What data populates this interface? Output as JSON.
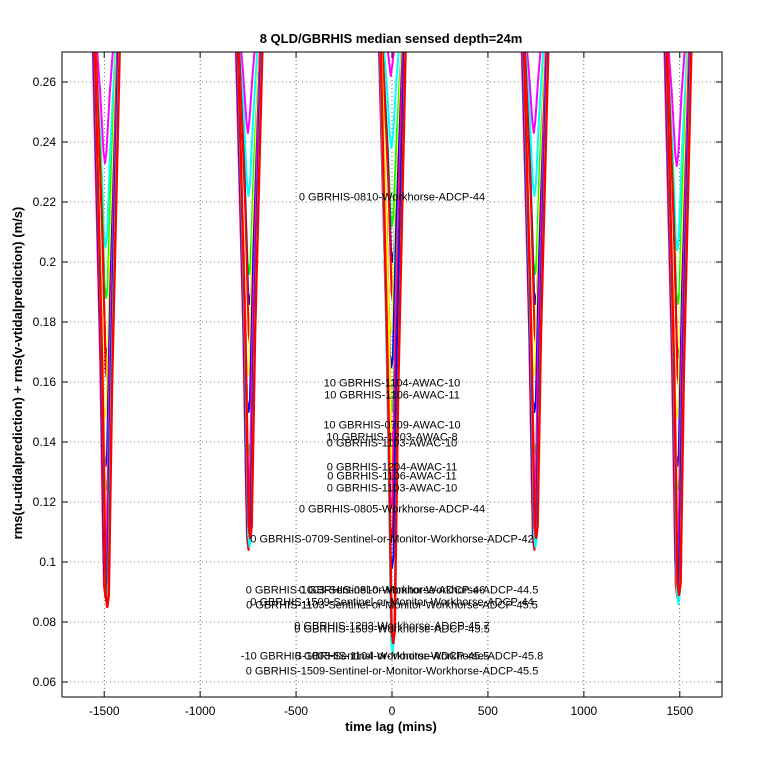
{
  "chart_data": {
    "type": "line",
    "title": "8 QLD/GBRHIS median sensed depth=24m",
    "xlabel": "time lag (mins)",
    "ylabel": "rms(u-utidalprediction) + rms(v-vtidalprediction) (m/s)",
    "xlim": [
      -1720,
      1720
    ],
    "ylim": [
      0.055,
      0.27
    ],
    "grid": true,
    "xticks": [
      -1500,
      -1000,
      -500,
      0,
      500,
      1000,
      1500
    ],
    "yticks": [
      0.06,
      0.08,
      0.1,
      0.12,
      0.14,
      0.16,
      0.18,
      0.2,
      0.22,
      0.24,
      0.26
    ],
    "ytick_labels": [
      "0.06",
      "0.08",
      "0.1",
      "0.12",
      "0.14",
      "0.16",
      "0.18",
      "0.2",
      "0.22",
      "0.24",
      "0.26"
    ],
    "dip_centers": [
      -1490,
      -745,
      0,
      745,
      1490
    ],
    "series": [
      {
        "color": "#ff00ff",
        "minima": [
          0.233,
          0.243,
          0.262,
          0.243,
          0.232
        ]
      },
      {
        "color": "#00ffff",
        "minima": [
          0.205,
          0.222,
          0.238,
          0.222,
          0.204
        ]
      },
      {
        "color": "#00ff00",
        "minima": [
          0.188,
          0.196,
          0.212,
          0.196,
          0.186
        ]
      },
      {
        "color": "#0000ff",
        "minima": [
          0.168,
          0.186,
          0.2,
          0.186,
          0.168
        ]
      },
      {
        "color": "#ff0000",
        "minima": [
          0.16,
          0.172,
          0.186,
          0.172,
          0.158
        ]
      },
      {
        "color": "#ffff00",
        "minima": [
          0.148,
          0.162,
          0.176,
          0.162,
          0.148
        ]
      },
      {
        "color": "#0000ff",
        "minima": [
          0.132,
          0.15,
          0.165,
          0.15,
          0.132
        ]
      },
      {
        "color": "#00ff00",
        "minima": [
          0.124,
          0.136,
          0.15,
          0.136,
          0.124
        ]
      },
      {
        "color": "#ff00ff",
        "minima": [
          0.115,
          0.124,
          0.14,
          0.124,
          0.115
        ]
      },
      {
        "color": "#ffff00",
        "minima": [
          0.104,
          0.116,
          0.128,
          0.116,
          0.104
        ]
      },
      {
        "color": "#ff00ff",
        "minima": [
          0.096,
          0.114,
          0.118,
          0.114,
          0.096
        ]
      },
      {
        "color": "#ff0000",
        "minima": [
          0.088,
          0.104,
          0.108,
          0.104,
          0.088
        ]
      },
      {
        "color": "#0000ff",
        "minima": [
          0.092,
          0.106,
          0.098,
          0.106,
          0.092
        ]
      },
      {
        "color": "#00ffff",
        "minima": [
          0.089,
          0.105,
          0.07,
          0.105,
          0.086
        ]
      },
      {
        "color": "#ff0000",
        "minima": [
          0.085,
          0.108,
          0.073,
          0.108,
          0.089
        ]
      }
    ],
    "annotations": [
      {
        "text": "0 GBRHIS-0810-Workhorse-ADCP-44",
        "x": 0,
        "y": 0.2205
      },
      {
        "text": "10 GBRHIS-1104-AWAC-10",
        "x": 0,
        "y": 0.1585
      },
      {
        "text": "10 GBRHIS-1106-AWAC-11",
        "x": 0,
        "y": 0.1545
      },
      {
        "text": "10 GBRHIS-0709-AWAC-10",
        "x": 0,
        "y": 0.1445
      },
      {
        "text": "10 GBRHIS-1203-AWAC-8",
        "x": 0,
        "y": 0.1405
      },
      {
        "text": "0 GBRHIS-1103-AWAC-10",
        "x": 0,
        "y": 0.1385
      },
      {
        "text": "0 GBRHIS-1204-AWAC-11",
        "x": 0,
        "y": 0.1305
      },
      {
        "text": "0 GBRHIS-1106-AWAC-11",
        "x": 0,
        "y": 0.1275
      },
      {
        "text": "0 GBRHIS-1103-AWAC-10",
        "x": 0,
        "y": 0.1235
      },
      {
        "text": "0 GBRHIS-0805-Workhorse-ADCP-44",
        "x": 0,
        "y": 0.1165
      },
      {
        "text": "0 GBRHIS-0709-Sentinel-or-Monitor-Workhorse-ADCP-42",
        "x": 0,
        "y": 0.1065
      },
      {
        "text": "0 GBRHIS-1003-Sentinel-or-Monitor-Workhorse-ADCP-44.5",
        "x": 0,
        "y": 0.0895
      },
      {
        "text": "0 GBRHIS-0810-Workhorse-ADCP-46",
        "x": 0,
        "y": 0.0895
      },
      {
        "text": "0 GBRHIS-1509-Sentinel-or-Monitor-Workhorse-ADCP-44",
        "x": 0,
        "y": 0.0855
      },
      {
        "text": "0 GBRHIS-1103-Sentinel-or-Monitor-Workhorse-ADCP-45.5",
        "x": 0,
        "y": 0.0845
      },
      {
        "text": "0 GBRHIS-1203-Workhorse-ADCP-45.7",
        "x": 0,
        "y": 0.0775
      },
      {
        "text": "0 GBRHIS-1509-Workhorse-ADCP-45.5",
        "x": 0,
        "y": 0.0765
      },
      {
        "text": "-10 GBRHIS-1003-Sentinel-or-Monitor-Workhorse-ADCP-45.8",
        "x": 0,
        "y": 0.0675
      },
      {
        "text": "0 GBRHIS-1104-Workhorse-ADCP-45.5",
        "x": 0,
        "y": 0.0675
      },
      {
        "text": "0 GBRHIS-1509-Sentinel-or-Monitor-Workhorse-ADCP-45.5",
        "x": 0,
        "y": 0.0625
      }
    ]
  }
}
